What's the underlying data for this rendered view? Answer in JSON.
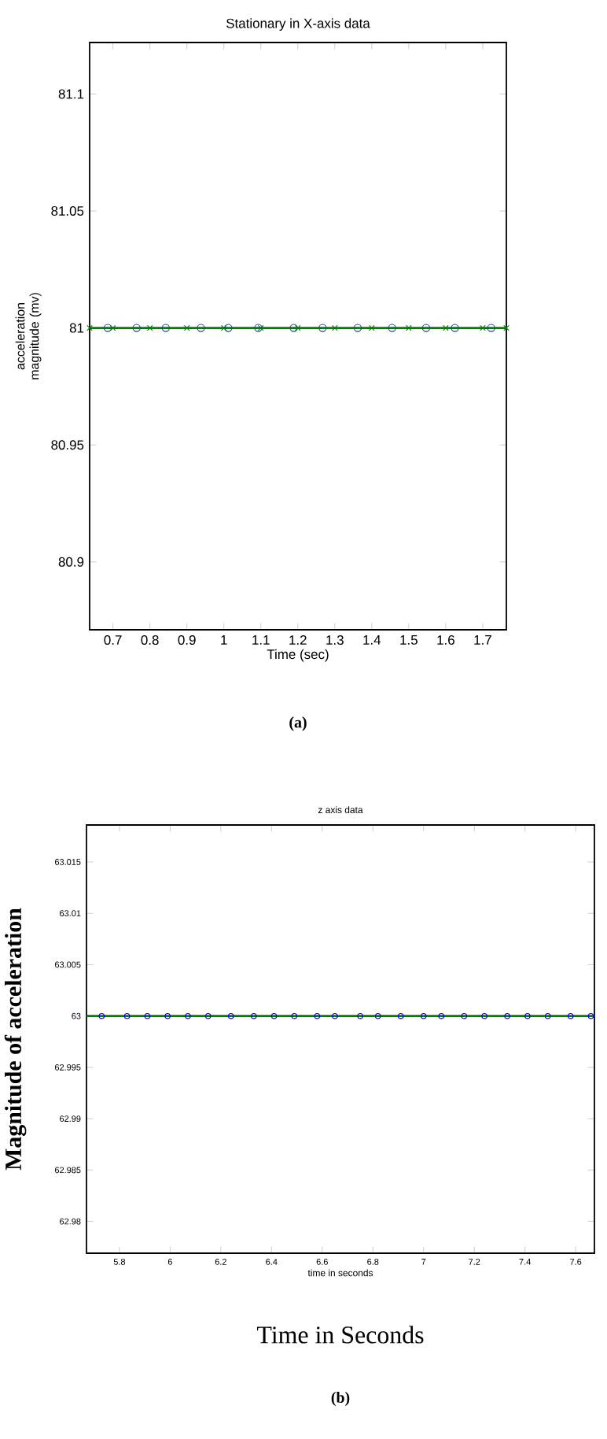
{
  "chart_data": [
    {
      "type": "line",
      "title": "Stationary in X-axis data",
      "xlabel": "Time (sec)",
      "ylabel": "acceleration magnitude (mv)",
      "xlim": [
        0.637,
        1.764
      ],
      "ylim": [
        80.871,
        81.122
      ],
      "xticks": [
        0.7,
        0.8,
        0.9,
        1,
        1.1,
        1.2,
        1.3,
        1.4,
        1.5,
        1.6,
        1.7
      ],
      "yticks": [
        80.9,
        80.95,
        81,
        81.05,
        81.1
      ],
      "series": [
        {
          "color": "#008000",
          "marker": "cross",
          "x": [
            0.637,
            0.7,
            0.8,
            0.9,
            1,
            1.1,
            1.2,
            1.3,
            1.4,
            1.5,
            1.6,
            1.7,
            1.764
          ],
          "values": [
            81,
            81,
            81,
            81,
            81,
            81,
            81,
            81,
            81,
            81,
            81,
            81,
            81
          ]
        },
        {
          "color": "#1f4e79",
          "marker": "circle",
          "type": "scatter",
          "x": [
            0.686,
            0.764,
            0.843,
            0.938,
            1.012,
            1.093,
            1.189,
            1.267,
            1.362,
            1.455,
            1.547,
            1.625,
            1.723
          ],
          "values": [
            81,
            81,
            81,
            81,
            81,
            81,
            81,
            81,
            81,
            81,
            81,
            81,
            81
          ]
        }
      ],
      "annotations": [
        "(a)"
      ]
    },
    {
      "type": "line",
      "title": "z axis data",
      "xlabel": "time in seconds",
      "ylabel": "Magnitude of acceleration",
      "xlim": [
        5.67,
        7.674
      ],
      "ylim": [
        62.9769,
        63.0186
      ],
      "xticks": [
        5.8,
        6,
        6.2,
        6.4,
        6.6,
        6.8,
        7,
        7.2,
        7.4,
        7.6
      ],
      "yticks": [
        62.98,
        62.985,
        62.99,
        62.995,
        63,
        63.005,
        63.01,
        63.015
      ],
      "series": [
        {
          "color": "#008000",
          "x": [
            5.67,
            7.674
          ],
          "values": [
            63,
            63
          ]
        },
        {
          "color": "#0000ff",
          "marker": "circle",
          "type": "scatter",
          "x": [
            5.73,
            5.83,
            5.91,
            5.99,
            6.07,
            6.15,
            6.24,
            6.33,
            6.41,
            6.49,
            6.58,
            6.65,
            6.75,
            6.82,
            6.91,
            7.0,
            7.07,
            7.16,
            7.24,
            7.33,
            7.41,
            7.49,
            7.58,
            7.66
          ],
          "values": [
            63,
            63,
            63,
            63,
            63,
            63,
            63,
            63,
            63,
            63,
            63,
            63,
            63,
            63,
            63,
            63,
            63,
            63,
            63,
            63,
            63,
            63,
            63,
            63
          ]
        }
      ],
      "annotations": [
        "Time in Seconds",
        "(b)"
      ]
    }
  ]
}
